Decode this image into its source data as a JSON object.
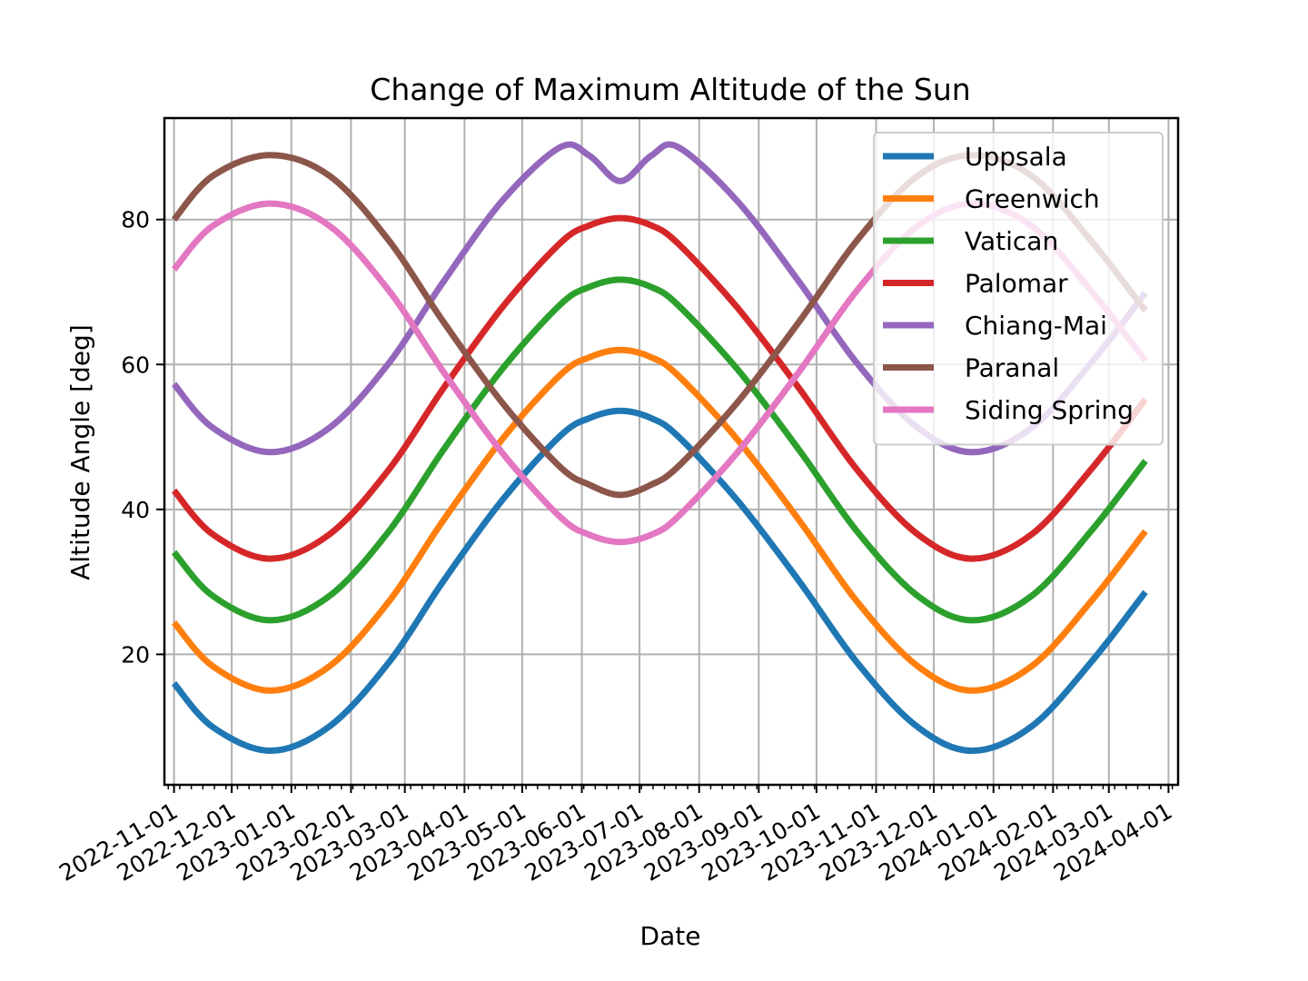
{
  "chart_data": {
    "type": "line",
    "title": "Change of Maximum Altitude of the Sun",
    "xlabel": "Date",
    "ylabel": "Altitude Angle [deg]",
    "xlim": [
      "2022-10-27",
      "2024-04-06"
    ],
    "ylim": [
      2,
      94
    ],
    "grid": true,
    "legend_position": "top-right",
    "x_ticks": [
      "2022-11-01",
      "2022-12-01",
      "2023-01-01",
      "2023-02-01",
      "2023-03-01",
      "2023-04-01",
      "2023-05-01",
      "2023-06-01",
      "2023-07-01",
      "2023-08-01",
      "2023-09-01",
      "2023-10-01",
      "2023-11-01",
      "2023-12-01",
      "2024-01-01",
      "2024-02-01",
      "2024-03-01",
      "2024-04-01"
    ],
    "y_ticks": [
      20,
      40,
      60,
      80
    ],
    "x": [
      "2022-11-01",
      "2022-11-21",
      "2022-12-21",
      "2023-01-21",
      "2023-02-21",
      "2023-03-21",
      "2023-04-21",
      "2023-05-21",
      "2023-06-05",
      "2023-06-21",
      "2023-07-07",
      "2023-07-21",
      "2023-08-21",
      "2023-09-22",
      "2023-10-22",
      "2023-11-22",
      "2023-12-21",
      "2024-01-21",
      "2024-02-21",
      "2024-03-20"
    ],
    "series": [
      {
        "name": "Uppsala",
        "color": "#1f77b4",
        "values": [
          16.0,
          10.0,
          6.7,
          10.1,
          19.0,
          30.1,
          41.4,
          50.2,
          52.6,
          53.6,
          52.6,
          50.1,
          41.2,
          30.1,
          18.9,
          10.1,
          6.7,
          10.1,
          19.0,
          28.6
        ]
      },
      {
        "name": "Greenwich",
        "color": "#ff7f0e",
        "values": [
          24.4,
          18.4,
          15.0,
          18.4,
          27.4,
          38.5,
          49.8,
          58.6,
          61.0,
          62.0,
          61.0,
          58.5,
          49.6,
          38.5,
          27.3,
          18.5,
          15.0,
          18.4,
          27.4,
          37.0
        ]
      },
      {
        "name": "Vatican",
        "color": "#2ca02c",
        "values": [
          34.1,
          28.1,
          24.7,
          28.1,
          37.1,
          48.2,
          59.5,
          68.3,
          70.7,
          71.7,
          70.7,
          68.2,
          59.3,
          48.2,
          37.0,
          28.2,
          24.7,
          28.1,
          37.1,
          46.7
        ]
      },
      {
        "name": "Palomar",
        "color": "#d62728",
        "values": [
          42.6,
          36.6,
          33.2,
          36.6,
          45.6,
          56.7,
          68.0,
          76.8,
          79.2,
          80.2,
          79.2,
          76.7,
          67.8,
          56.7,
          45.5,
          36.7,
          33.2,
          36.6,
          45.6,
          55.2
        ]
      },
      {
        "name": "Chiang-Mai",
        "color": "#9467bd",
        "values": [
          57.3,
          51.3,
          47.9,
          51.3,
          60.3,
          71.4,
          82.7,
          90.0,
          88.8,
          85.3,
          88.8,
          90.0,
          82.5,
          71.4,
          60.2,
          51.4,
          47.9,
          51.3,
          60.3,
          69.9
        ]
      },
      {
        "name": "Paranal",
        "color": "#8c564b",
        "values": [
          80.0,
          86.0,
          88.9,
          86.0,
          77.0,
          65.9,
          54.6,
          45.8,
          43.4,
          42.0,
          43.4,
          45.9,
          54.8,
          65.9,
          77.1,
          85.9,
          88.9,
          86.0,
          77.0,
          67.4
        ]
      },
      {
        "name": "Siding Spring",
        "color": "#e377c2",
        "values": [
          73.1,
          79.1,
          82.2,
          79.1,
          70.1,
          59.0,
          47.7,
          38.9,
          36.5,
          35.5,
          36.5,
          39.0,
          47.9,
          59.0,
          70.2,
          79.0,
          82.2,
          79.1,
          70.1,
          60.5
        ]
      }
    ]
  }
}
